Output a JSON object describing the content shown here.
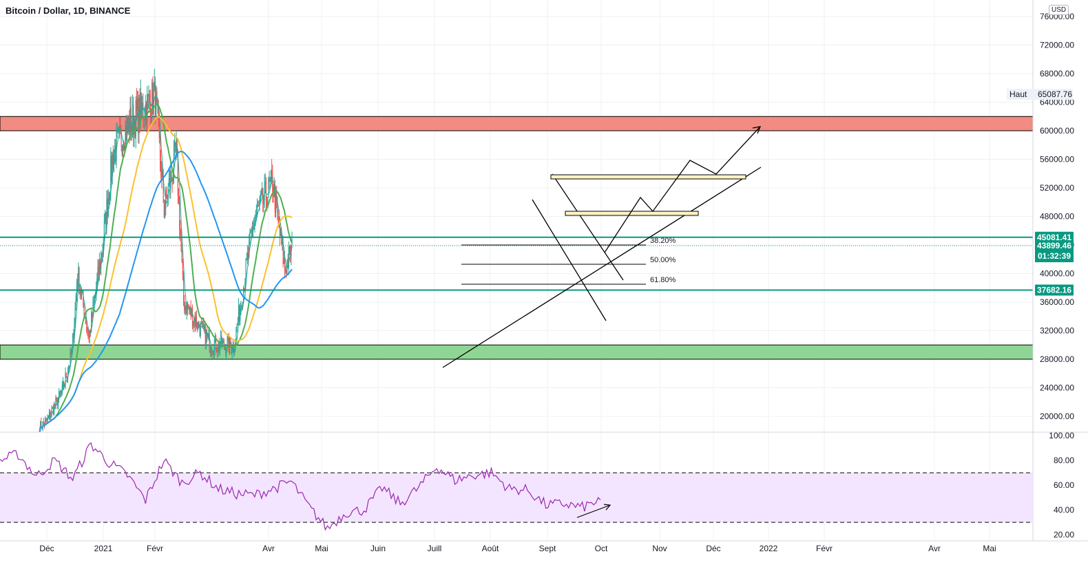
{
  "header": {
    "title": "Bitcoin / Dollar, 1D, BINANCE",
    "currency": "USD"
  },
  "colors": {
    "up": "#26a69a",
    "down": "#ef5350",
    "ma_fast": "#26a69a",
    "ma_mid": "#4caf50",
    "ma_slow": "#fbc02d",
    "ma_long": "#2196f3",
    "rsi": "#9c27b0",
    "resistance_zone": "#f28b82",
    "support_zone": "#8fd694",
    "level_line": "#089981",
    "rsi_band": "#f3e5ff"
  },
  "price_axis": {
    "ticks": [
      "76000.00",
      "72000.00",
      "68000.00",
      "64000.00",
      "60000.00",
      "56000.00",
      "52000.00",
      "48000.00",
      "44000.00",
      "40000.00",
      "36000.00",
      "32000.00",
      "28000.00",
      "24000.00",
      "20000.00"
    ],
    "high_label": "Haut",
    "high_value": "65087.76",
    "level_upper": "45081.41",
    "current_price": "43899.46",
    "countdown": "01:32:39",
    "level_lower": "37682.16"
  },
  "rsi_axis": {
    "ticks": [
      "100.00",
      "80.00",
      "60.00",
      "40.00",
      "20.00"
    ]
  },
  "time_axis": {
    "labels": [
      "Déc",
      "2021",
      "Févr",
      "Avr",
      "Mai",
      "Juin",
      "Juill",
      "Août",
      "Sept",
      "Oct",
      "Nov",
      "Déc",
      "2022",
      "Févr",
      "Avr",
      "Mai"
    ]
  },
  "fib_labels": [
    "38.20%",
    "50.00%",
    "61.80%"
  ],
  "chart_data": [
    {
      "type": "line",
      "title": "Bitcoin / Dollar, 1D, BINANCE",
      "xlabel": "",
      "ylabel": "",
      "ylim": [
        18000,
        78500
      ],
      "x": [
        "2020-11-22",
        "2020-12-01",
        "2020-12-20",
        "2021-01-01",
        "2021-01-08",
        "2021-01-22",
        "2021-02-08",
        "2021-02-21",
        "2021-03-13",
        "2021-04-14",
        "2021-04-25",
        "2021-05-10",
        "2021-05-19",
        "2021-06-22",
        "2021-07-20",
        "2021-08-14",
        "2021-09-06",
        "2021-09-21",
        "2021-10-01"
      ],
      "series": [
        {
          "values": [
            18500,
            19400,
            23500,
            29000,
            40000,
            31000,
            44000,
            57000,
            61000,
            64800,
            49000,
            57000,
            36000,
            30000,
            29800,
            47500,
            52800,
            40600,
            43899
          ]
        }
      ],
      "levels": {
        "resistance_zone": [
          60000,
          62000
        ],
        "support_zone": [
          28000,
          30000
        ],
        "upper_line": 45081.41,
        "lower_line": 37682.16,
        "all_time_high": 65087.76
      },
      "grid": true,
      "legend": "none"
    },
    {
      "type": "line",
      "title": "",
      "xlabel": "",
      "ylabel": "",
      "ylim": [
        17,
        101
      ],
      "series": [
        {
          "values": [
            80,
            85,
            67,
            80,
            65,
            93,
            78,
            68,
            48,
            80,
            62,
            70,
            57,
            53,
            52,
            57,
            63,
            42,
            25,
            38,
            40,
            58,
            45,
            58,
            75,
            64,
            68,
            70,
            57,
            56,
            44,
            45,
            42,
            48
          ]
        }
      ],
      "bands": [
        30,
        70
      ],
      "grid": true,
      "legend": "none"
    }
  ]
}
